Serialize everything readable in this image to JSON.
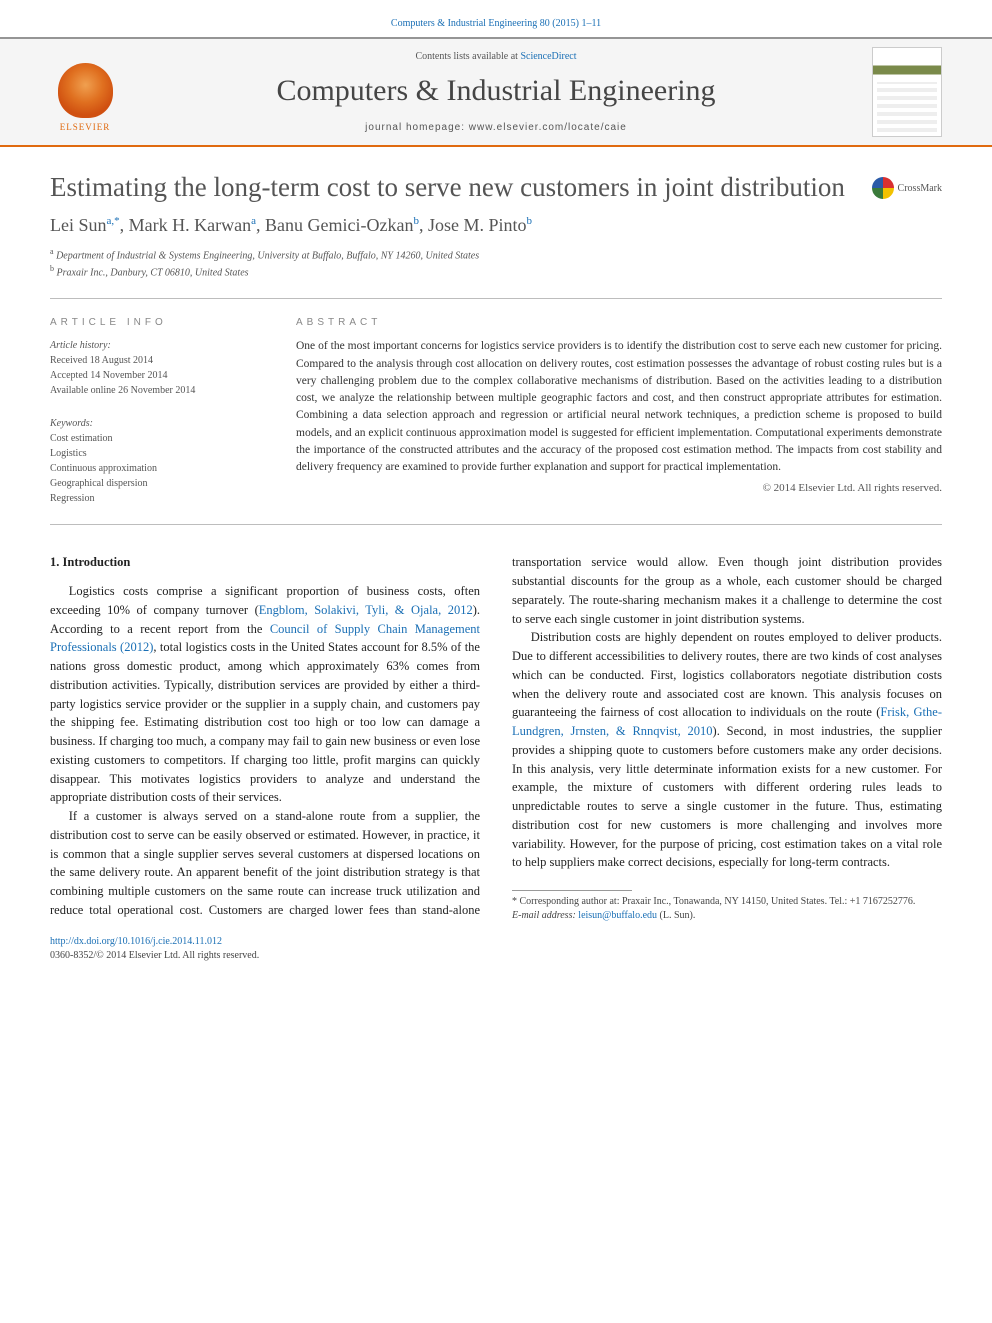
{
  "colors": {
    "link": "#1a6fb5",
    "accent_orange": "#e06a0f",
    "heading_grey": "#555555",
    "rule_grey": "#bdbdbd",
    "text": "#1a1a1a"
  },
  "typography": {
    "body_family": "Georgia, 'Times New Roman', serif",
    "title_size_pt": 27,
    "journal_size_pt": 30,
    "body_size_pt": 12.5,
    "small_size_pt": 10
  },
  "top_citation": "Computers & Industrial Engineering 80 (2015) 1–11",
  "header": {
    "contents_prefix": "Contents lists available at ",
    "contents_link": "ScienceDirect",
    "journal": "Computers & Industrial Engineering",
    "homepage_label": "journal homepage: ",
    "homepage_url": "www.elsevier.com/locate/caie",
    "publisher": "ELSEVIER"
  },
  "crossmark": "CrossMark",
  "title": "Estimating the long-term cost to serve new customers in joint distribution",
  "authors_html": "Lei Sun|a,*|, Mark H. Karwan|a|, Banu Gemici-Ozkan|b|, Jose M. Pinto|b|",
  "authors": [
    {
      "name": "Lei Sun",
      "marks": "a,*"
    },
    {
      "name": "Mark H. Karwan",
      "marks": "a"
    },
    {
      "name": "Banu Gemici-Ozkan",
      "marks": "b"
    },
    {
      "name": "Jose M. Pinto",
      "marks": "b"
    }
  ],
  "affiliations": [
    {
      "mark": "a",
      "text": "Department of Industrial & Systems Engineering, University at Buffalo, Buffalo, NY 14260, United States"
    },
    {
      "mark": "b",
      "text": "Praxair Inc., Danbury, CT 06810, United States"
    }
  ],
  "article_info": {
    "heading": "article info",
    "history_label": "Article history:",
    "received": "Received 18 August 2014",
    "accepted": "Accepted 14 November 2014",
    "online": "Available online 26 November 2014",
    "keywords_label": "Keywords:",
    "keywords": [
      "Cost estimation",
      "Logistics",
      "Continuous approximation",
      "Geographical dispersion",
      "Regression"
    ]
  },
  "abstract": {
    "heading": "abstract",
    "text": "One of the most important concerns for logistics service providers is to identify the distribution cost to serve each new customer for pricing. Compared to the analysis through cost allocation on delivery routes, cost estimation possesses the advantage of robust costing rules but is a very challenging problem due to the complex collaborative mechanisms of distribution. Based on the activities leading to a distribution cost, we analyze the relationship between multiple geographic factors and cost, and then construct appropriate attributes for estimation. Combining a data selection approach and regression or artificial neural network techniques, a prediction scheme is proposed to build models, and an explicit continuous approximation model is suggested for efficient implementation. Computational experiments demonstrate the importance of the constructed attributes and the accuracy of the proposed cost estimation method. The impacts from cost stability and delivery frequency are examined to provide further explanation and support for practical implementation.",
    "copyright": "© 2014 Elsevier Ltd. All rights reserved."
  },
  "section1": {
    "heading": "1. Introduction",
    "p1a": "Logistics costs comprise a significant proportion of business costs, often exceeding 10% of company turnover (",
    "p1link1": "Engblom, Solakivi, Tyli, & Ojala, 2012",
    "p1b": "). According to a recent report from the ",
    "p1link2": "Council of Supply Chain Management Professionals (2012)",
    "p1c": ", total logistics costs in the United States account for 8.5% of the nations gross domestic product, among which approximately 63% comes from distribution activities. Typically, distribution services are provided by either a third-party logistics service provider or the supplier in a supply chain, and customers pay the shipping fee. Estimating distribution cost too high or too low can damage a business. If charging too much, a company may fail to gain new business or even lose existing customers to competitors. If charging too little, profit margins can quickly disappear. This motivates logistics providers to analyze and understand the appropriate distribution costs of their services.",
    "p2": "If a customer is always served on a stand-alone route from a supplier, the distribution cost to serve can be easily observed or estimated. However, in practice, it is common that a single supplier serves several customers at dispersed locations on the same delivery route. An apparent benefit of the joint distribution strategy is that combining multiple customers on the same route can increase truck utilization and reduce total operational cost. Customers are charged lower fees than stand-alone transportation service would allow. Even though joint distribution provides substantial discounts for the group as a whole, each customer should be charged separately. The route-sharing mechanism makes it a challenge to determine the cost to serve each single customer in joint distribution systems.",
    "p3a": "Distribution costs are highly dependent on routes employed to deliver products. Due to different accessibilities to delivery routes, there are two kinds of cost analyses which can be conducted. First, logistics collaborators negotiate distribution costs when the delivery route and associated cost are known. This analysis focuses on guaranteeing the fairness of cost allocation to individuals on the route (",
    "p3link": "Frisk, Gthe-Lundgren, Jrnsten, & Rnnqvist, 2010",
    "p3b": "). Second, in most industries, the supplier provides a shipping quote to customers before customers make any order decisions. In this analysis, very little determinate information exists for a new customer. For example, the mixture of customers with different ordering rules leads to unpredictable routes to serve a single customer in the future. Thus, estimating distribution cost for new customers is more challenging and involves more variability. However, for the purpose of pricing, cost estimation takes on a vital role to help suppliers make correct decisions, especially for long-term contracts."
  },
  "footnotes": {
    "corresponding": "* Corresponding author at: Praxair Inc., Tonawanda, NY 14150, United States. Tel.: +1 7167252776.",
    "email_label": "E-mail address: ",
    "email": "leisun@buffalo.edu",
    "email_suffix": " (L. Sun)."
  },
  "doi": {
    "link": "http://dx.doi.org/10.1016/j.cie.2014.11.012",
    "issn_line": "0360-8352/© 2014 Elsevier Ltd. All rights reserved."
  }
}
